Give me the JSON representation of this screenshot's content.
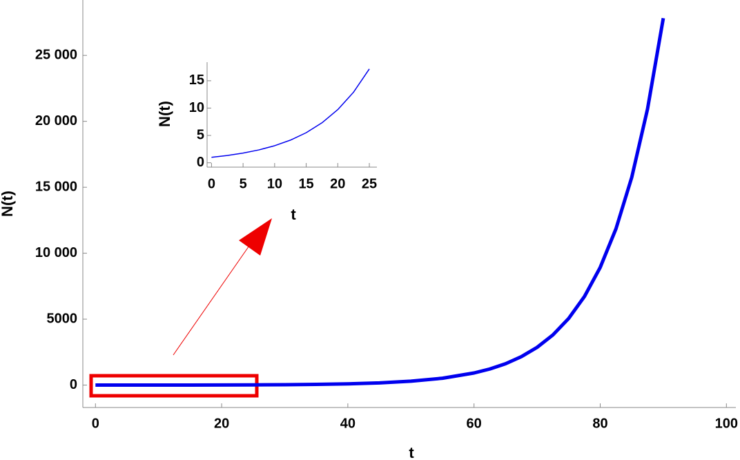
{
  "chart_data": [
    {
      "type": "line",
      "xlabel": "t",
      "ylabel": "N(t)",
      "color": "#0000ee",
      "x": [
        0,
        5,
        10,
        15,
        20,
        25,
        30,
        35,
        40,
        45,
        50,
        55,
        60,
        62.5,
        65,
        67.5,
        70,
        72.5,
        75,
        77.5,
        80,
        82.5,
        85,
        87.5,
        90
      ],
      "values": [
        1,
        1.8,
        3.1,
        5.5,
        9.7,
        17.2,
        30,
        54,
        94,
        167,
        295,
        520,
        918,
        1220,
        1620,
        2155,
        2862,
        3801,
        5054,
        6716,
        8925,
        11855,
        15757,
        20935,
        27824
      ],
      "xlim": [
        -2,
        101.5
      ],
      "ylim": [
        -1700,
        29200
      ],
      "xticks": [
        0,
        20,
        40,
        60,
        80,
        100
      ],
      "yticks": [
        0,
        5000,
        {
          "value": 10000,
          "label": "10 000"
        },
        {
          "value": 15000,
          "label": "15 000"
        },
        {
          "value": 20000,
          "label": "20 000"
        },
        {
          "value": 25000,
          "label": "25 000"
        }
      ]
    },
    {
      "type": "line",
      "xlabel": "t",
      "ylabel": "N(t)",
      "color": "#0000ee",
      "x": [
        0,
        2.5,
        5,
        7.5,
        10,
        12.5,
        15,
        17.5,
        20,
        22.5,
        25
      ],
      "values": [
        1,
        1.33,
        1.77,
        2.35,
        3.12,
        4.14,
        5.5,
        7.31,
        9.72,
        12.91,
        17.16
      ],
      "xlim": [
        -0.7,
        26.2
      ],
      "ylim": [
        -0.8,
        18.4
      ],
      "xticks": [
        0,
        5,
        10,
        15,
        20,
        25
      ],
      "yticks": [
        0,
        5,
        10,
        15
      ]
    }
  ]
}
